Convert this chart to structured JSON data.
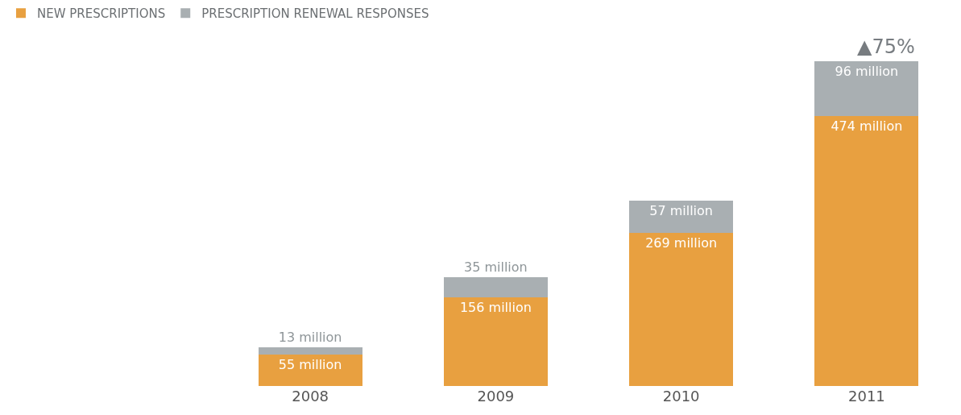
{
  "chart_data": {
    "type": "bar",
    "stacked": true,
    "categories": [
      "2008",
      "2009",
      "2010",
      "2011"
    ],
    "series": [
      {
        "name": "NEW PRESCRIPTIONS",
        "color": "#e8a040",
        "values": [
          55,
          156,
          269,
          474
        ],
        "value_labels": [
          "55 million",
          "156 million",
          "269 million",
          "474 million"
        ]
      },
      {
        "name": "PRESCRIPTION RENEWAL RESPONSES",
        "color": "#a9afb2",
        "values": [
          13,
          35,
          57,
          96
        ],
        "value_labels": [
          "13 million",
          "35 million",
          "57 million",
          "96 million"
        ]
      }
    ],
    "annotations": [
      {
        "text": "▲75%",
        "x": "2011",
        "y": 570
      }
    ],
    "legend": "top left",
    "grid": false
  }
}
